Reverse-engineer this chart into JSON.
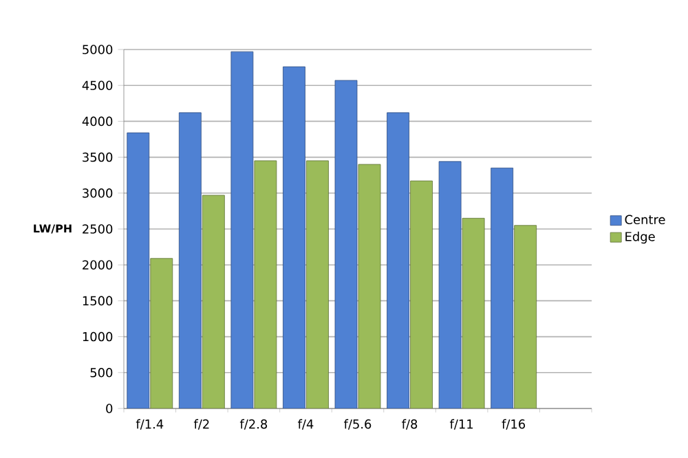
{
  "chart_data": {
    "type": "bar",
    "ylabel": "LW/PH",
    "categories": [
      "f/1.4",
      "f/2",
      "f/2.8",
      "f/4",
      "f/5.6",
      "f/8",
      "f/11",
      "f/16",
      null
    ],
    "series": [
      {
        "name": "Centre",
        "color": "#4f81d3",
        "values": [
          3840,
          4120,
          4970,
          4760,
          4570,
          4120,
          3440,
          3350,
          null
        ]
      },
      {
        "name": "Edge",
        "color": "#9bbb59",
        "values": [
          2090,
          2970,
          3450,
          3450,
          3400,
          3170,
          2650,
          2550,
          null
        ]
      }
    ],
    "ylim": [
      0,
      5000
    ],
    "yticks": [
      0,
      500,
      1000,
      1500,
      2000,
      2500,
      3000,
      3500,
      4000,
      4500,
      5000
    ],
    "grid": "y",
    "legend": "right"
  }
}
